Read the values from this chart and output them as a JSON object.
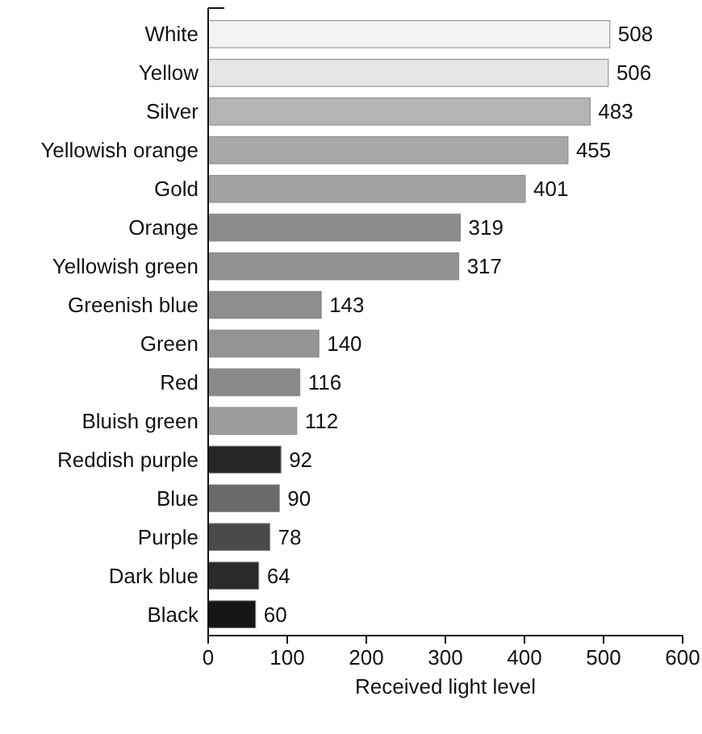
{
  "chart_data": {
    "type": "bar",
    "orientation": "horizontal",
    "xlabel": "Received light level",
    "categories": [
      "White",
      "Yellow",
      "Silver",
      "Yellowish orange",
      "Gold",
      "Orange",
      "Yellowish green",
      "Greenish blue",
      "Green",
      "Red",
      "Bluish green",
      "Reddish purple",
      "Blue",
      "Purple",
      "Dark blue",
      "Black"
    ],
    "values": [
      508,
      506,
      483,
      455,
      401,
      319,
      317,
      143,
      140,
      116,
      112,
      92,
      90,
      78,
      64,
      60
    ],
    "colors": [
      "#f2f2f2",
      "#e6e6e6",
      "#b4b4b4",
      "#a8a8a8",
      "#a2a2a2",
      "#8c8c8c",
      "#929292",
      "#8e8e8e",
      "#949494",
      "#8a8a8a",
      "#9c9c9c",
      "#262626",
      "#6a6a6a",
      "#4a4a4a",
      "#2a2a2a",
      "#151515"
    ],
    "xlim": [
      0,
      600
    ],
    "xticks": [
      0,
      100,
      200,
      300,
      400,
      500,
      600
    ],
    "data_labels": true,
    "grid": false
  }
}
